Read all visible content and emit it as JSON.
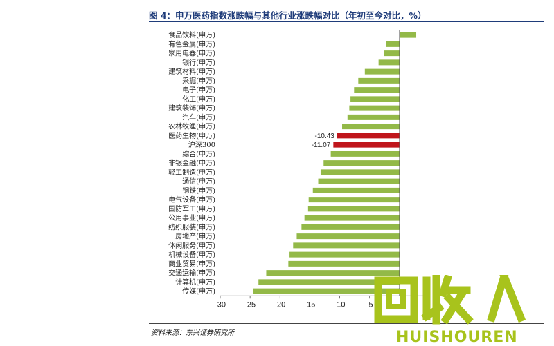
{
  "title": "图 4：申万医药指数涨跌幅与其他行业涨跌幅对比（年初至今对比，%）",
  "source": "资料来源：东兴证券研究所",
  "watermark": {
    "text": "HUISHOUREN",
    "glyphs": "回收人"
  },
  "colors": {
    "bar": "#93b948",
    "highlight": "#c0151b",
    "title": "#1f3c7a",
    "watermark": "#a8c31c"
  },
  "chart_data": {
    "type": "bar",
    "orientation": "horizontal",
    "categories": [
      "食品饮料(申万)",
      "有色金属(申万)",
      "家用电器(申万)",
      "银行(申万)",
      "建筑材料(申万)",
      "采掘(申万)",
      "电子(申万)",
      "化工(申万)",
      "建筑装饰(申万)",
      "汽车(申万)",
      "农林牧渔(申万)",
      "医药生物(申万)",
      "沪深300",
      "综合(申万)",
      "非银金融(申万)",
      "轻工制造(申万)",
      "通信(申万)",
      "钢铁(申万)",
      "电气设备(申万)",
      "国防军工(申万)",
      "公用事业(申万)",
      "纺织服装(申万)",
      "房地产(申万)",
      "休闲服务(申万)",
      "机械设备(申万)",
      "商业贸易(申万)",
      "交通运输(申万)",
      "计算机(申万)",
      "传媒(申万)"
    ],
    "values": [
      2.8,
      -2.2,
      -2.6,
      -3.5,
      -5.8,
      -6.9,
      -7.6,
      -8.2,
      -8.4,
      -8.7,
      -9.6,
      -10.43,
      -11.07,
      -11.5,
      -12.7,
      -13.2,
      -13.6,
      -14.5,
      -15.2,
      -15.3,
      -15.9,
      -16.4,
      -17.2,
      -17.8,
      -18.4,
      -18.6,
      -22.3,
      -23.6,
      -24.5
    ],
    "highlighted": [
      "医药生物(申万)",
      "沪深300"
    ],
    "data_labels": {
      "医药生物(申万)": "-10.43",
      "沪深300": "-11.07"
    },
    "xlim": [
      -30,
      5
    ],
    "xticks": [
      -30,
      -25,
      -20,
      -15,
      -10,
      -5
    ],
    "grid": false
  }
}
